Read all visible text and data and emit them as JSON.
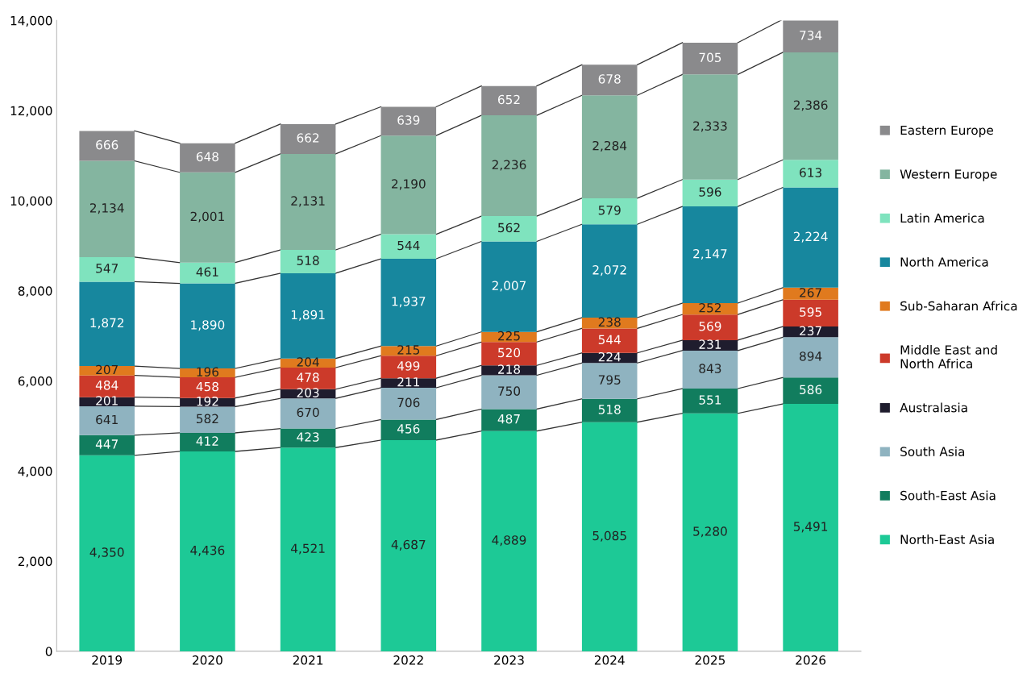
{
  "chart_data": {
    "type": "bar",
    "stacked": true,
    "categories": [
      "2019",
      "2020",
      "2021",
      "2022",
      "2023",
      "2024",
      "2025",
      "2026"
    ],
    "series": [
      {
        "name": "North-East Asia",
        "color": "#1dc996",
        "values": [
          4350,
          4436,
          4521,
          4687,
          4889,
          5085,
          5280,
          5491
        ],
        "value_labels": [
          "4,350",
          "4,436",
          "4,521",
          "4,687",
          "4,889",
          "5,085",
          "5,280",
          "5,491"
        ]
      },
      {
        "name": "South-East Asia",
        "color": "#117d5e",
        "values": [
          447,
          412,
          423,
          456,
          487,
          518,
          551,
          586
        ],
        "value_labels": [
          "447",
          "412",
          "423",
          "456",
          "487",
          "518",
          "551",
          "586"
        ]
      },
      {
        "name": "South Asia",
        "color": "#8fb3c0",
        "values": [
          641,
          582,
          670,
          706,
          750,
          795,
          843,
          894
        ],
        "value_labels": [
          "641",
          "582",
          "670",
          "706",
          "750",
          "795",
          "843",
          "894"
        ]
      },
      {
        "name": "Australasia",
        "color": "#1f1d2e",
        "values": [
          201,
          192,
          203,
          211,
          218,
          224,
          231,
          237
        ],
        "value_labels": [
          "201",
          "192",
          "203",
          "211",
          "218",
          "224",
          "231",
          "237"
        ]
      },
      {
        "name": "Middle East and\nNorth Africa",
        "color": "#cc3a2a",
        "values": [
          484,
          458,
          478,
          499,
          520,
          544,
          569,
          595
        ],
        "value_labels": [
          "484",
          "458",
          "478",
          "499",
          "520",
          "544",
          "569",
          "595"
        ]
      },
      {
        "name": "Sub-Saharan Africa",
        "color": "#e07a1e",
        "values": [
          207,
          196,
          204,
          215,
          225,
          238,
          252,
          267
        ],
        "value_labels": [
          "207",
          "196",
          "204",
          "215",
          "225",
          "238",
          "252",
          "267"
        ]
      },
      {
        "name": "North America",
        "color": "#17879e",
        "values": [
          1872,
          1890,
          1891,
          1937,
          2007,
          2072,
          2147,
          2224
        ],
        "value_labels": [
          "1,872",
          "1,890",
          "1,891",
          "1,937",
          "2,007",
          "2,072",
          "2,147",
          "2,224"
        ]
      },
      {
        "name": "Latin America",
        "color": "#7fe3be",
        "values": [
          547,
          461,
          518,
          544,
          562,
          579,
          596,
          613
        ],
        "value_labels": [
          "547",
          "461",
          "518",
          "544",
          "562",
          "579",
          "596",
          "613"
        ]
      },
      {
        "name": "Western Europe",
        "color": "#84b5a0",
        "values": [
          2134,
          2001,
          2131,
          2190,
          2236,
          2284,
          2333,
          2386
        ],
        "value_labels": [
          "2,134",
          "2,001",
          "2,131",
          "2,190",
          "2,236",
          "2,284",
          "2,333",
          "2,386"
        ]
      },
      {
        "name": "Eastern Europe",
        "color": "#8a8a8c",
        "values": [
          666,
          648,
          662,
          639,
          652,
          678,
          705,
          734
        ],
        "value_labels": [
          "666",
          "648",
          "662",
          "639",
          "652",
          "678",
          "705",
          "734"
        ]
      }
    ],
    "ylim": [
      0,
      14000
    ],
    "yticks": [
      {
        "value": 0,
        "label": "0"
      },
      {
        "value": 2000,
        "label": "2,000"
      },
      {
        "value": 4000,
        "label": "4,000"
      },
      {
        "value": 6000,
        "label": "6,000"
      },
      {
        "value": 8000,
        "label": "8,000"
      },
      {
        "value": 10000,
        "label": "10,000"
      },
      {
        "value": 12000,
        "label": "12,000"
      },
      {
        "value": 14000,
        "label": "14,000"
      }
    ],
    "legend": "right"
  }
}
